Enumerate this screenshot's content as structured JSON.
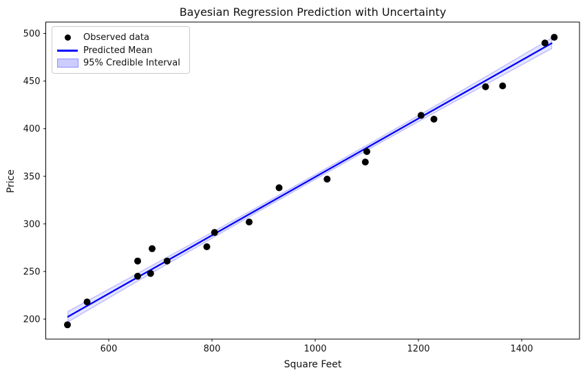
{
  "figure": {
    "title": "Bayesian Regression Prediction with Uncertainty",
    "xlabel": "Square Feet",
    "ylabel": "Price"
  },
  "legend": {
    "items": [
      {
        "label": "Observed data",
        "swatch": "dot",
        "color": "#000000"
      },
      {
        "label": "Predicted Mean",
        "swatch": "line",
        "color": "#0000ff"
      },
      {
        "label": "95% Credible Interval",
        "swatch": "patch",
        "color": "#ccccff"
      }
    ]
  },
  "chart_data": {
    "type": "scatter",
    "title": "Bayesian Regression Prediction with Uncertainty",
    "xlabel": "Square Feet",
    "ylabel": "Price",
    "xlim": [
      478,
      1512
    ],
    "ylim": [
      179,
      512
    ],
    "x_ticks": [
      600,
      800,
      1000,
      1200,
      1400
    ],
    "y_ticks": [
      200,
      250,
      300,
      350,
      400,
      450,
      500
    ],
    "grid": false,
    "legend_position": "upper left",
    "series": [
      {
        "name": "Observed data",
        "type": "scatter",
        "color": "#000000",
        "points": [
          [
            520,
            194
          ],
          [
            558,
            218
          ],
          [
            656,
            245
          ],
          [
            656,
            261
          ],
          [
            681,
            248
          ],
          [
            684,
            274
          ],
          [
            713,
            261
          ],
          [
            790,
            276
          ],
          [
            805,
            291
          ],
          [
            872,
            302
          ],
          [
            930,
            338
          ],
          [
            1023,
            347
          ],
          [
            1097,
            365
          ],
          [
            1100,
            376
          ],
          [
            1205,
            414
          ],
          [
            1230,
            410
          ],
          [
            1330,
            444
          ],
          [
            1363,
            445
          ],
          [
            1445,
            490
          ],
          [
            1463,
            496
          ]
        ]
      },
      {
        "name": "Predicted Mean",
        "type": "line",
        "color": "#0000ff",
        "x": [
          521,
          638,
          755,
          872,
          990,
          1107,
          1224,
          1341,
          1458
        ],
        "y": [
          202.5,
          238.4,
          274.2,
          310.1,
          346.2,
          382.1,
          418.0,
          453.8,
          489.7
        ]
      },
      {
        "name": "95% Credible Interval",
        "type": "band",
        "fill_color": "#0000ff",
        "alpha": 0.2,
        "x": [
          521,
          638,
          755,
          872,
          990,
          1107,
          1224,
          1341,
          1458
        ],
        "upper": [
          208.0,
          242.6,
          277.5,
          312.8,
          348.7,
          384.8,
          421.2,
          458.0,
          495.2
        ],
        "lower": [
          197.0,
          234.2,
          270.9,
          307.4,
          343.7,
          379.4,
          414.7,
          449.6,
          484.2
        ]
      }
    ]
  }
}
